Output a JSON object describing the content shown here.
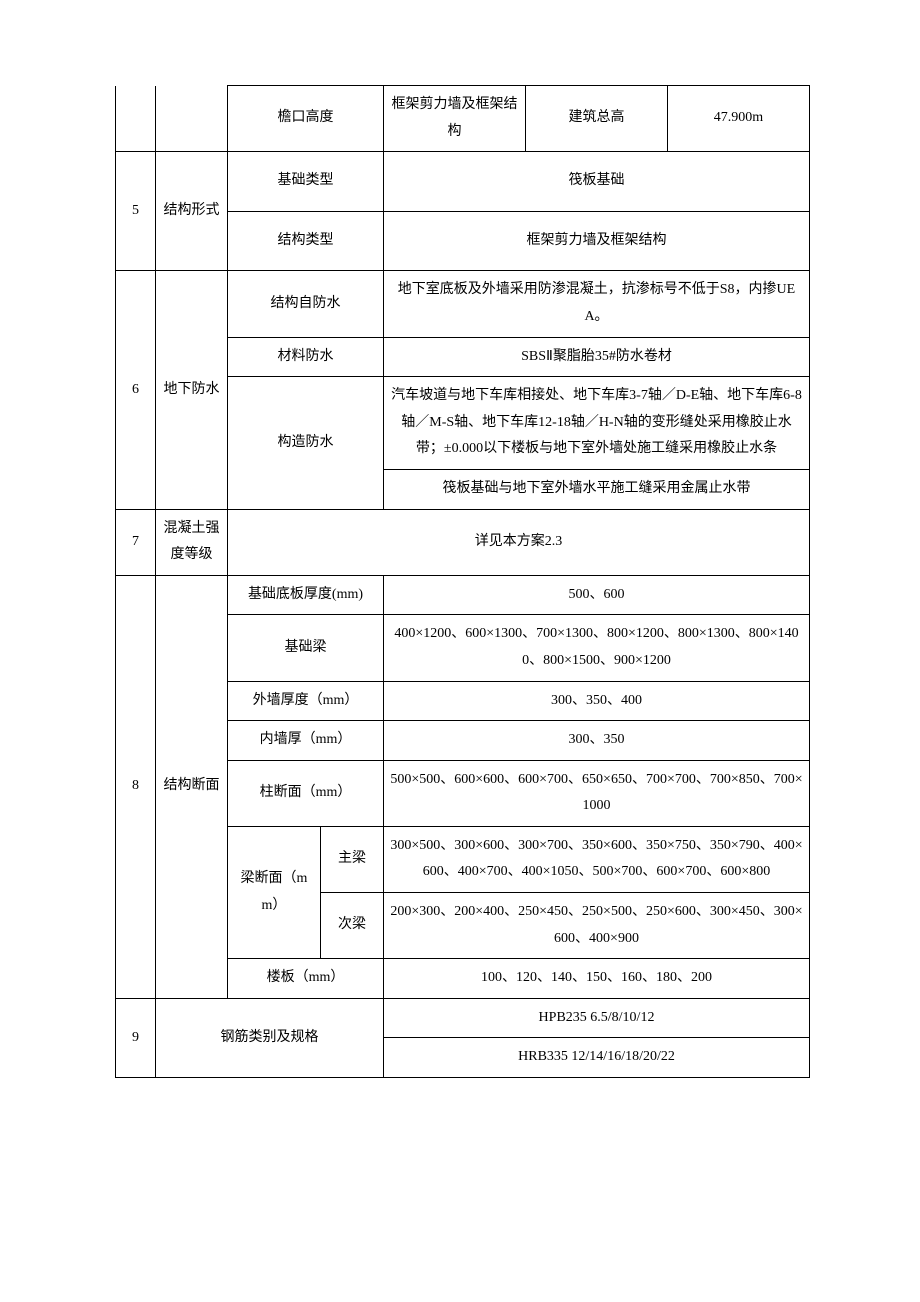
{
  "row_eave": {
    "label": "檐口高度",
    "col1": "框架剪力墙及框架结构",
    "col2": "建筑总高",
    "col3": "47.900m"
  },
  "sec5": {
    "num": "5",
    "cat": "结构形式",
    "r1_label": "基础类型",
    "r1_val": "筏板基础",
    "r2_label": "结构类型",
    "r2_val": "框架剪力墙及框架结构"
  },
  "sec6": {
    "num": "6",
    "cat": "地下防水",
    "r1_label": "结构自防水",
    "r1_val": "地下室底板及外墙采用防渗混凝土，抗渗标号不低于S8，内掺UEA。",
    "r2_label": "材料防水",
    "r2_val": "SBSⅡ聚脂胎35#防水卷材",
    "r3_label": "构造防水",
    "r3_val1": "汽车坡道与地下车库相接处、地下车库3-7轴／D-E轴、地下车库6-8轴／M-S轴、地下车库12-18轴／H-N轴的变形缝处采用橡胶止水带；±0.000以下楼板与地下室外墙处施工缝采用橡胶止水条",
    "r3_val2": "筏板基础与地下室外墙水平施工缝采用金属止水带"
  },
  "sec7": {
    "num": "7",
    "cat": "混凝土强度等级",
    "val": "详见本方案2.3"
  },
  "sec8": {
    "num": "8",
    "cat": "结构断面",
    "r1_label": "基础底板厚度(mm)",
    "r1_val": "500、600",
    "r2_label": "基础梁",
    "r2_val": "400×1200、600×1300、700×1300、800×1200、800×1300、800×1400、800×1500、900×1200",
    "r3_label": "外墙厚度（mm）",
    "r3_val": "300、350、400",
    "r4_label": "内墙厚（mm）",
    "r4_val": "300、350",
    "r5_label": "柱断面（mm）",
    "r5_val": "500×500、600×600、600×700、650×650、700×700、700×850、700×1000",
    "r6_label": "梁断面（mm）",
    "r6a_sub": "主梁",
    "r6a_val": "300×500、300×600、300×700、350×600、350×750、350×790、400×600、400×700、400×1050、500×700、600×700、600×800",
    "r6b_sub": "次梁",
    "r6b_val": "200×300、200×400、250×450、250×500、250×600、300×450、300×600、400×900",
    "r7_label": "楼板（mm）",
    "r7_val": "100、120、140、150、160、180、200"
  },
  "sec9": {
    "num": "9",
    "cat": "钢筋类别及规格",
    "r1_val": "HPB235 6.5/8/10/12",
    "r2_val": "HRB335 12/14/16/18/20/22"
  }
}
